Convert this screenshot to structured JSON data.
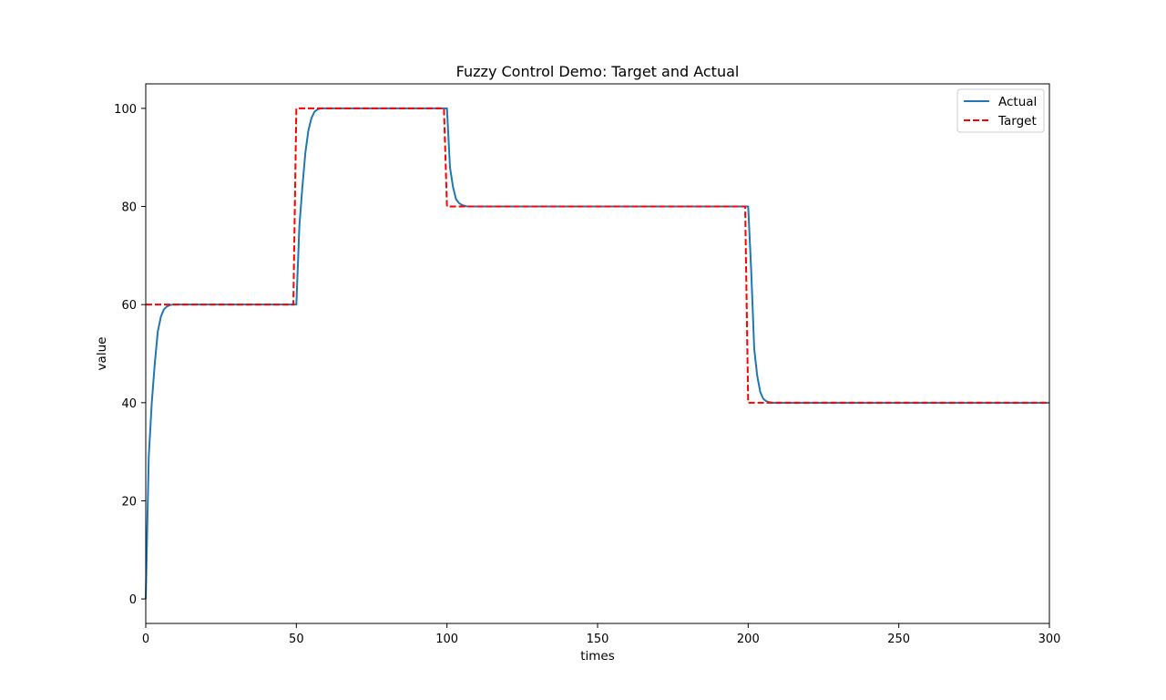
{
  "chart_data": {
    "type": "line",
    "title": "Fuzzy Control Demo: Target and Actual",
    "xlabel": "times",
    "ylabel": "value",
    "xlim": [
      0,
      300
    ],
    "ylim": [
      -5,
      105
    ],
    "xticks": [
      0,
      50,
      100,
      150,
      200,
      250,
      300
    ],
    "yticks": [
      0,
      20,
      40,
      60,
      80,
      100
    ],
    "grid": false,
    "legend_position": "top-right",
    "series": [
      {
        "name": "Actual",
        "color": "#1f77b4",
        "style": "solid",
        "x": [
          0,
          1,
          2,
          3,
          4,
          5,
          6,
          7,
          8,
          9,
          10,
          20,
          30,
          40,
          50,
          51,
          52,
          53,
          54,
          55,
          56,
          57,
          58,
          60,
          70,
          80,
          90,
          100,
          101,
          102,
          103,
          104,
          105,
          106,
          107,
          108,
          110,
          150,
          200,
          201,
          202,
          203,
          204,
          205,
          206,
          207,
          208,
          210,
          250,
          300
        ],
        "y": [
          0,
          29,
          40,
          48,
          54.5,
          57.5,
          59,
          59.6,
          59.9,
          60,
          60,
          60,
          60,
          60,
          60,
          76,
          84,
          91,
          95.5,
          98,
          99.3,
          99.8,
          100,
          100,
          100,
          100,
          100,
          100,
          88,
          84,
          81.5,
          80.7,
          80.3,
          80.1,
          80,
          80,
          80,
          80,
          80,
          67,
          51,
          45.5,
          42.2,
          40.8,
          40.3,
          40.1,
          40,
          40,
          40,
          40
        ]
      },
      {
        "name": "Target",
        "color": "#ff0000",
        "style": "dashed",
        "x": [
          0,
          49,
          50,
          99,
          100,
          199,
          200,
          300
        ],
        "y": [
          60,
          60,
          100,
          100,
          80,
          80,
          40,
          40
        ]
      }
    ]
  }
}
